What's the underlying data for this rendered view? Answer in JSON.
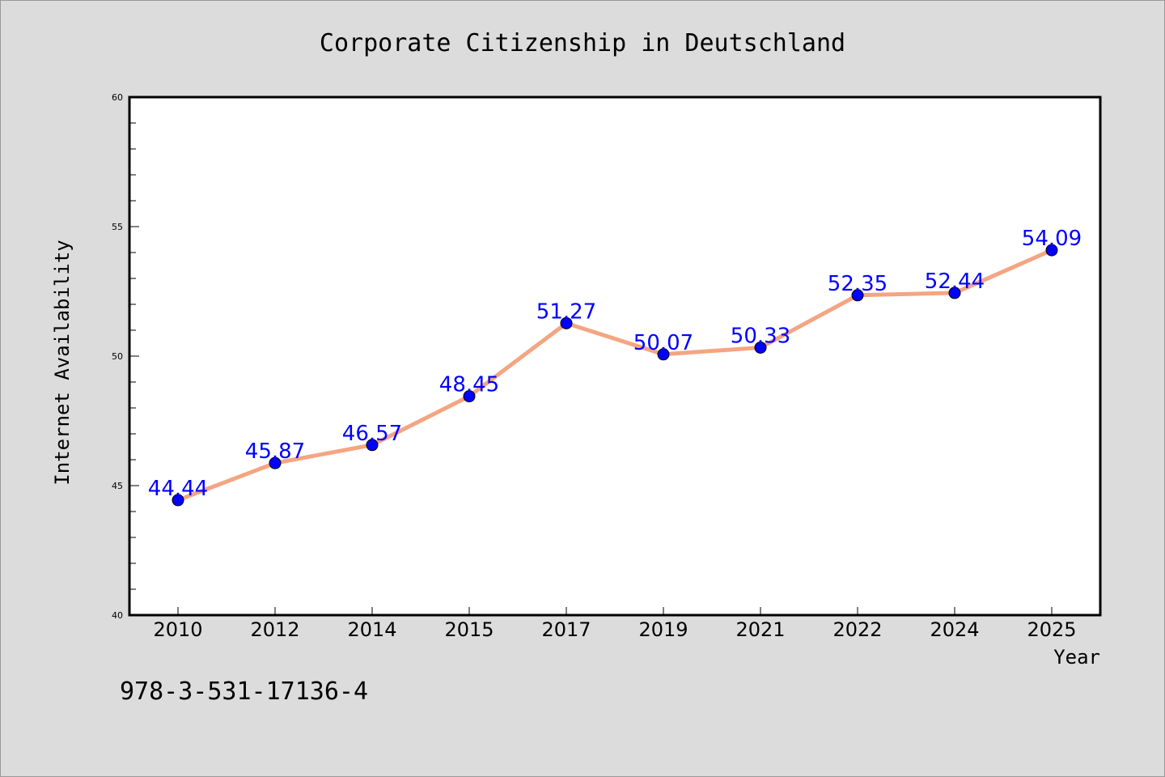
{
  "chart_data": {
    "type": "line",
    "title": "Corporate Citizenship in Deutschland",
    "xlabel": "Year",
    "ylabel": "Internet Availability",
    "categories": [
      "2010",
      "2012",
      "2014",
      "2015",
      "2017",
      "2019",
      "2021",
      "2022",
      "2024",
      "2025"
    ],
    "series": [
      {
        "values": [
          44.44,
          45.87,
          46.57,
          48.45,
          51.27,
          50.07,
          50.33,
          52.35,
          52.44,
          54.09
        ],
        "data_labels": [
          "44.44",
          "45.87",
          "46.57",
          "48.45",
          "51.27",
          "50.07",
          "50.33",
          "52.35",
          "52.44",
          "54.09"
        ]
      }
    ],
    "ylim": [
      40,
      60
    ],
    "yticks": [
      "40",
      "45",
      "50",
      "55",
      "60"
    ],
    "grid": false,
    "colors": {
      "line": "#f4a582",
      "marker": "#0000ff",
      "data_label": "#0000ff",
      "background": "#dcdcdc",
      "plot_area": "#ffffff"
    }
  },
  "annotation": "978-3-531-17136-4"
}
